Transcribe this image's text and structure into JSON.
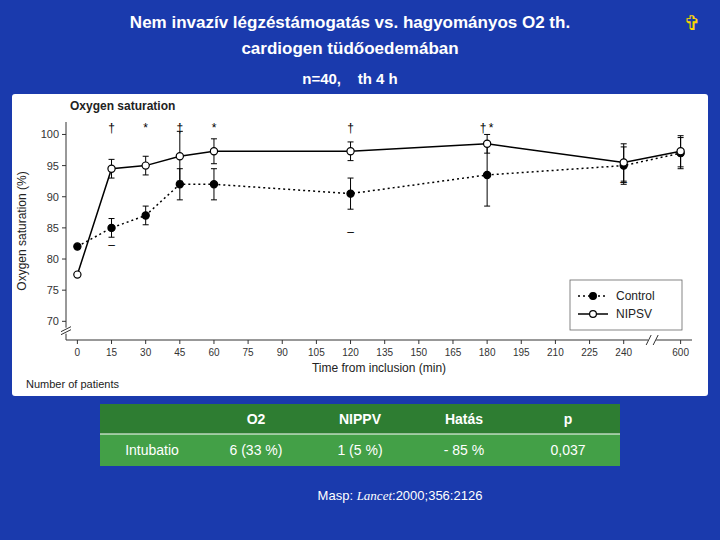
{
  "chart_data": {
    "type": "line",
    "title": [
      "Nem invazív légzéstámogatás vs. hagyományos O2 th.",
      "cardiogen tüdőoedemában"
    ],
    "subtitle": "n=40,    th 4 h",
    "icon": {
      "text": "✞",
      "color": "gold"
    },
    "plot_title": "Oxygen saturation",
    "xlabel": "Time from inclusion (min)",
    "ylabel": "Oxygen saturation (%)",
    "x": [
      0,
      15,
      30,
      45,
      60,
      120,
      180,
      240,
      600
    ],
    "series": [
      {
        "name": "Control",
        "color": "black",
        "marker": "circle",
        "line_style": "dotted",
        "values": [
          82,
          85,
          87,
          92,
          92,
          90.5,
          93.5,
          95,
          97
        ],
        "err_low": [
          0,
          1.5,
          1.5,
          2.5,
          2.5,
          2.5,
          5,
          3,
          2.5
        ],
        "err_high": [
          0,
          1.5,
          1.5,
          2.5,
          2.5,
          2.5,
          5,
          3,
          2.5
        ]
      },
      {
        "name": "NIPSV",
        "color": "black",
        "marker": "open-circle",
        "line_style": "solid",
        "values": [
          77.5,
          94.5,
          95,
          96.5,
          97.3,
          97.3,
          98.5,
          95.5,
          97.3
        ],
        "err_low": [
          0,
          1.5,
          1.5,
          4,
          2,
          1.5,
          1.5,
          3,
          2.5
        ],
        "err_high": [
          0,
          1.5,
          1.5,
          4,
          2,
          1.5,
          1.5,
          3,
          2.5
        ]
      }
    ],
    "xlim": [
      -5,
      672
    ],
    "xticks": [
      0,
      15,
      30,
      45,
      60,
      75,
      90,
      105,
      120,
      135,
      150,
      165,
      180,
      195,
      210,
      225,
      240,
      600
    ],
    "ylim": [
      67,
      102
    ],
    "yticks": [
      70,
      75,
      80,
      85,
      90,
      95,
      100
    ],
    "grid": false,
    "legend": "lower right",
    "annotations": [
      {
        "text": "†",
        "x": 15,
        "y": 100.2
      },
      {
        "text": "†",
        "x": 45,
        "y": 100.2
      },
      {
        "text": "†",
        "x": 120,
        "y": 100.2
      },
      {
        "text": "†",
        "x": 180,
        "y": 100.2
      },
      {
        "text": "*",
        "x": 30,
        "y": 100.2
      },
      {
        "text": "*",
        "x": 60,
        "y": 100.2
      },
      {
        "text": "*",
        "x": 180,
        "y": 100.2
      },
      {
        "text": "–",
        "x": 15,
        "y": 81.5
      },
      {
        "text": "–",
        "x": 120,
        "y": 83.5
      },
      {
        "text": "–",
        "x": 240,
        "y": 91.5
      }
    ],
    "note": "Number of patients",
    "table": {
      "columns": [
        null,
        "O2",
        "NIPPV",
        "Hatás",
        "p"
      ],
      "rows": [
        [
          "Intubatio",
          "6 (33 %)",
          "1 (5 %)",
          "- 85 %",
          "0,037"
        ]
      ]
    },
    "reference": [
      "Masp: ",
      "Lancet",
      ":2000;356:2126"
    ]
  }
}
